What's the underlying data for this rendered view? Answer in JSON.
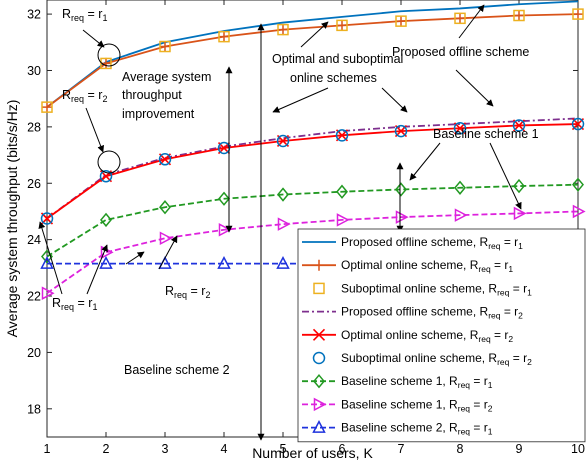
{
  "chart_data": {
    "type": "line",
    "xlabel": "Number of users, K",
    "ylabel": "Average system throughput (bits/s/Hz)",
    "xlim": [
      1,
      10
    ],
    "ylim": [
      17,
      32.5
    ],
    "xticks": [
      1,
      2,
      3,
      4,
      5,
      6,
      7,
      8,
      9,
      10
    ],
    "yticks": [
      18,
      20,
      22,
      24,
      26,
      28,
      30,
      32
    ],
    "x": [
      1,
      2,
      3,
      4,
      5,
      6,
      7,
      8,
      9,
      10
    ],
    "series": [
      {
        "name": "Proposed offline scheme, R_req = r_1",
        "color": "#0072BD",
        "dash": "solid",
        "marker": "none",
        "values": [
          28.7,
          30.3,
          31.0,
          31.4,
          31.7,
          31.9,
          32.1,
          32.2,
          32.35,
          32.45
        ]
      },
      {
        "name": "Optimal online scheme, R_req = r_1",
        "color": "#D95319",
        "dash": "solid",
        "marker": "plus",
        "values": [
          28.7,
          30.25,
          30.85,
          31.2,
          31.45,
          31.6,
          31.75,
          31.85,
          31.95,
          32.0
        ]
      },
      {
        "name": "Suboptimal online scheme, R_req = r_1",
        "color": "#EDB120",
        "dash": "none",
        "marker": "square",
        "values": [
          28.7,
          30.25,
          30.85,
          31.2,
          31.45,
          31.6,
          31.75,
          31.85,
          31.95,
          32.0
        ]
      },
      {
        "name": "Proposed offline scheme, R_req = r_2",
        "color": "#7E2F8E",
        "dash": "dashdot",
        "marker": "none",
        "values": [
          24.75,
          26.3,
          26.9,
          27.3,
          27.6,
          27.85,
          28.0,
          28.1,
          28.2,
          28.3
        ]
      },
      {
        "name": "Optimal online scheme, R_req = r_2",
        "color": "#FF0000",
        "dash": "solid",
        "marker": "x",
        "values": [
          24.75,
          26.25,
          26.85,
          27.25,
          27.5,
          27.7,
          27.85,
          27.95,
          28.05,
          28.1
        ]
      },
      {
        "name": "Suboptimal online scheme, R_req = r_2",
        "color": "#0072BD",
        "dash": "none",
        "marker": "circle",
        "values": [
          24.75,
          26.25,
          26.85,
          27.25,
          27.5,
          27.7,
          27.85,
          27.95,
          28.05,
          28.1
        ]
      },
      {
        "name": "Baseline scheme 1, R_req = r_1",
        "color": "#229922",
        "dash": "dashed",
        "marker": "diamond",
        "values": [
          23.4,
          24.7,
          25.15,
          25.45,
          25.6,
          25.7,
          25.78,
          25.84,
          25.9,
          25.95
        ]
      },
      {
        "name": "Baseline scheme 1, R_req = r_2",
        "color": "#DD22DD",
        "dash": "dashed",
        "marker": "triangle-right",
        "values": [
          22.1,
          23.55,
          24.05,
          24.35,
          24.55,
          24.7,
          24.8,
          24.87,
          24.93,
          25.0
        ]
      },
      {
        "name": "Baseline scheme 2, R_req = r_1",
        "color": "#1F33DD",
        "dash": "dashed",
        "marker": "triangle-up",
        "values": [
          23.15,
          23.15,
          23.15,
          23.15,
          23.15,
          23.15,
          23.15,
          23.15,
          23.15,
          23.15
        ]
      }
    ],
    "legend": {
      "placement": "bottom-right",
      "entries": [
        {
          "prefix": "Proposed offline scheme, R",
          "sub": "req",
          "suffix": " = r",
          "idx": "1"
        },
        {
          "prefix": "Optimal online scheme, R",
          "sub": "req",
          "suffix": " = r",
          "idx": "1"
        },
        {
          "prefix": "Suboptimal online scheme, R",
          "sub": "req",
          "suffix": " = r",
          "idx": "1"
        },
        {
          "prefix": "Proposed offline scheme, R",
          "sub": "req",
          "suffix": " = r",
          "idx": "2"
        },
        {
          "prefix": "Optimal online scheme, R",
          "sub": "req",
          "suffix": " = r",
          "idx": "2"
        },
        {
          "prefix": "Suboptimal online scheme, R",
          "sub": "req",
          "suffix": " = r",
          "idx": "2"
        },
        {
          "prefix": "Baseline scheme 1, R",
          "sub": "req",
          "suffix": " = r",
          "idx": "1"
        },
        {
          "prefix": "Baseline scheme 1, R",
          "sub": "req",
          "suffix": " = r",
          "idx": "2"
        },
        {
          "prefix": "Baseline scheme 2, R",
          "sub": "req",
          "suffix": " = r",
          "idx": "1"
        }
      ]
    },
    "annotations": {
      "req_r1_top": {
        "prefix": "R",
        "sub": "req",
        "suffix": " = r",
        "idx": "1"
      },
      "req_r2_mid": {
        "prefix": "R",
        "sub": "req",
        "suffix": " = r",
        "idx": "2"
      },
      "req_r1_bottom": {
        "prefix": "R",
        "sub": "req",
        "suffix": " = r",
        "idx": "1"
      },
      "req_r2_bottom": {
        "prefix": "R",
        "sub": "req",
        "suffix": " = r",
        "idx": "2"
      },
      "avg_line1": "Average system",
      "avg_line2": "throughput",
      "avg_line3": "improvement",
      "optimal_line1": "Optimal and suboptimal",
      "optimal_line2": "online schemes",
      "proposed_offline": "Proposed offline scheme",
      "baseline1": "Baseline scheme 1",
      "baseline2": "Baseline scheme 2"
    },
    "grid": false
  }
}
